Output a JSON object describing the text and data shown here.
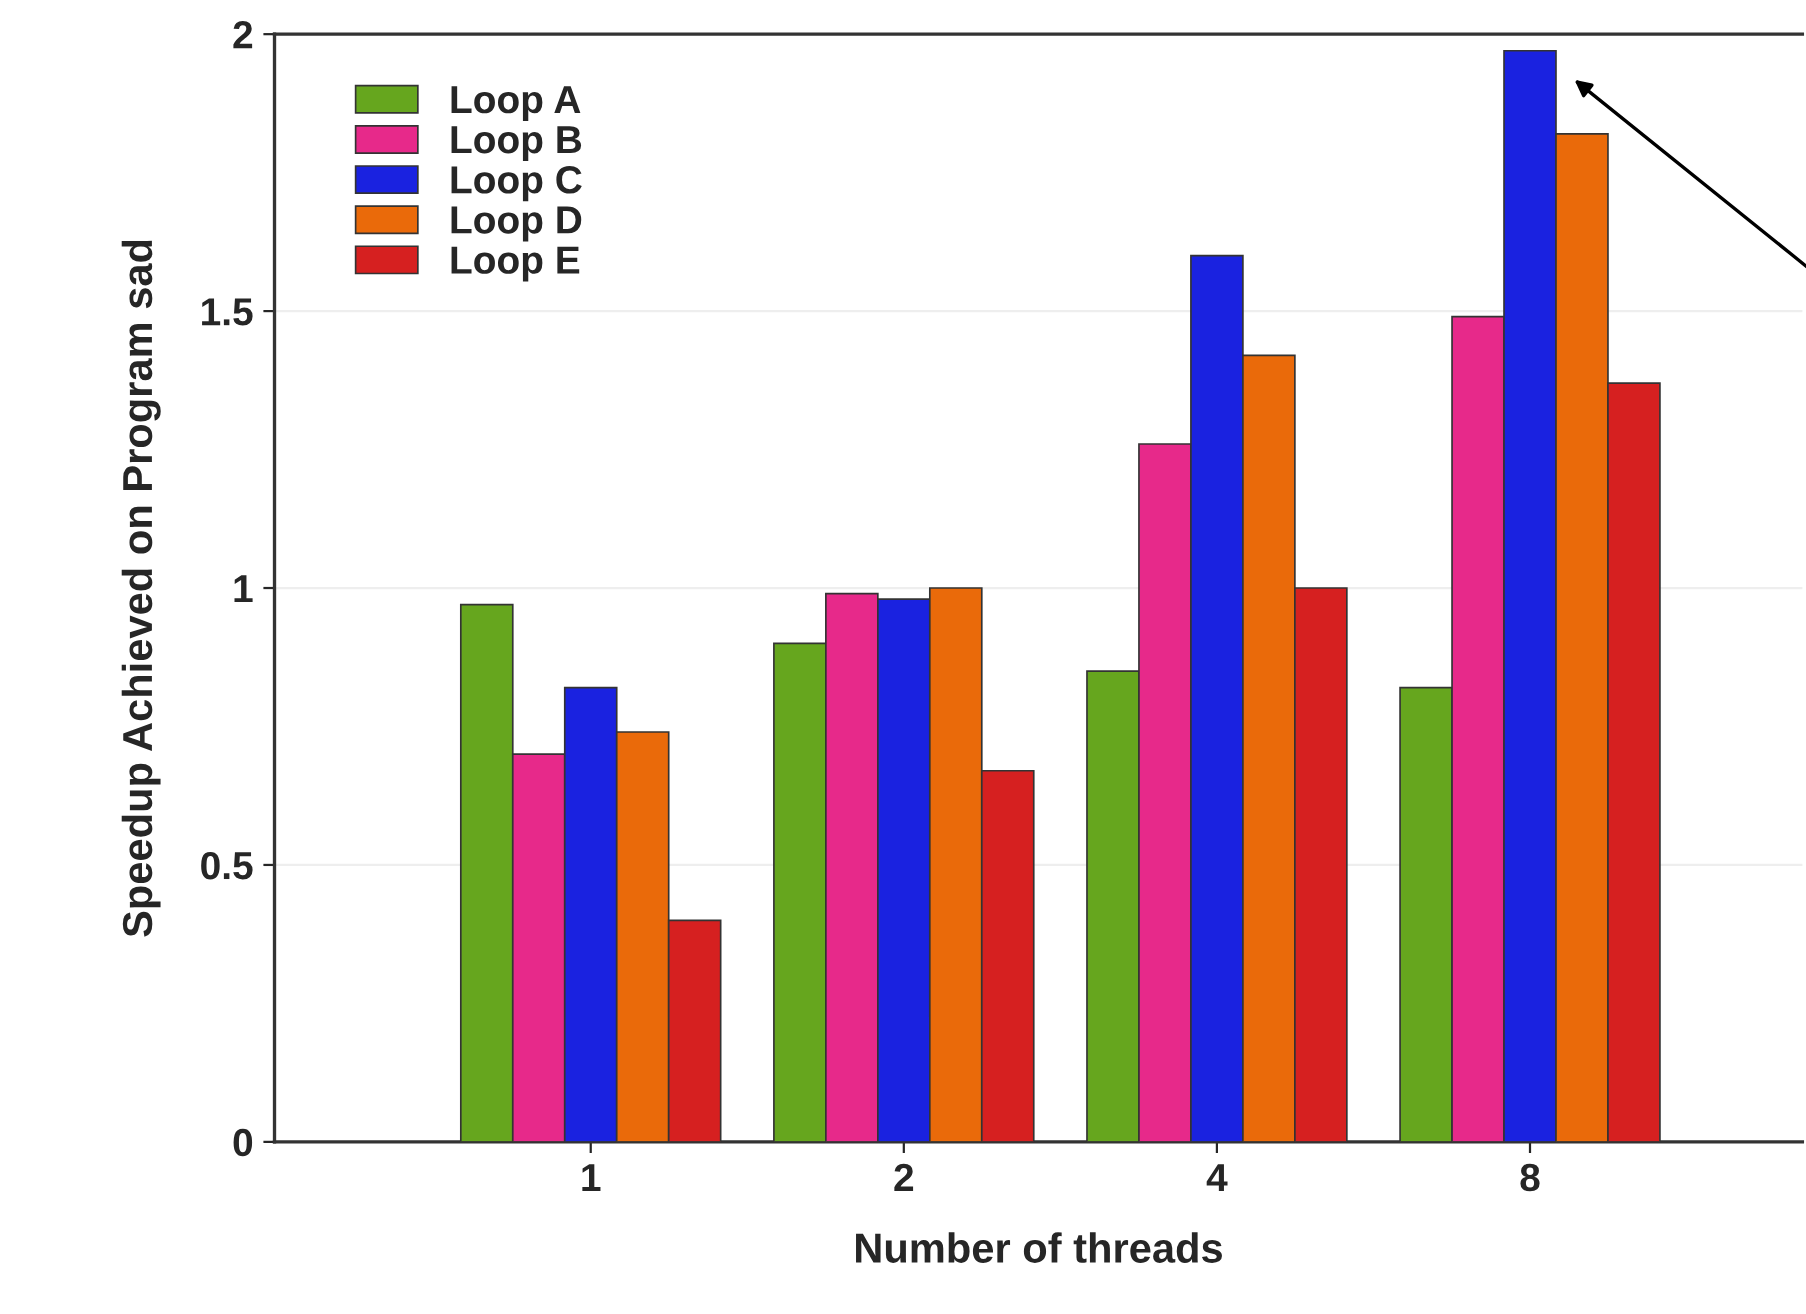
{
  "chart_data": {
    "type": "bar",
    "xlabel": "Number of threads",
    "ylabel": "Speedup Achieved on Program sad",
    "categories": [
      "1",
      "2",
      "4",
      "8"
    ],
    "series": [
      {
        "name": "Loop A",
        "color": "#66a61e",
        "values": [
          0.97,
          0.9,
          0.85,
          0.82
        ]
      },
      {
        "name": "Loop B",
        "color": "#e7298a",
        "values": [
          0.7,
          0.99,
          1.26,
          1.49
        ]
      },
      {
        "name": "Loop C",
        "color": "#1a22e0",
        "values": [
          0.82,
          0.98,
          1.6,
          1.97
        ]
      },
      {
        "name": "Loop D",
        "color": "#ea6a0a",
        "values": [
          0.74,
          1.0,
          1.42,
          1.82
        ]
      },
      {
        "name": "Loop E",
        "color": "#d62020",
        "values": [
          0.4,
          0.67,
          1.0,
          1.37
        ]
      }
    ],
    "ylim": [
      0,
      2
    ],
    "yticks": [
      0,
      {
        "value": 0.5,
        "label": "0.5"
      },
      1,
      {
        "value": 1.5,
        "label": "1.5"
      },
      2
    ],
    "grid": "y",
    "legend": "top left"
  }
}
